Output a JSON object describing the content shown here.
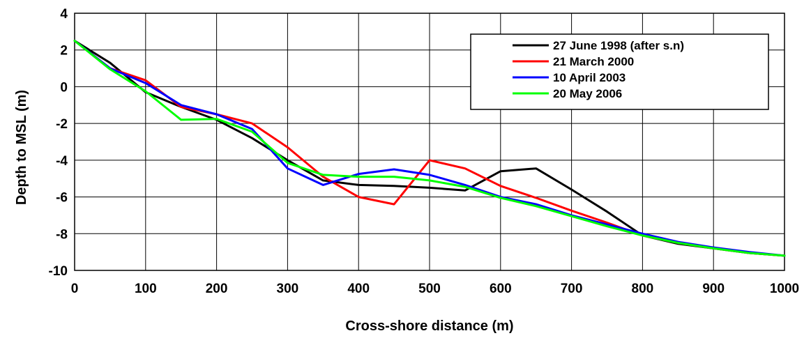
{
  "chart_data": {
    "type": "line",
    "xlabel": "Cross-shore distance (m)",
    "ylabel": "Depth to MSL (m)",
    "xlim": [
      0,
      1000
    ],
    "ylim": [
      -10,
      4
    ],
    "xticks": [
      0,
      100,
      200,
      300,
      400,
      500,
      600,
      700,
      800,
      900,
      1000
    ],
    "yticks": [
      4,
      2,
      0,
      -2,
      -4,
      -6,
      -8,
      -10
    ],
    "grid": true,
    "legend_position": "top-right",
    "series": [
      {
        "name": "27 June 1998 (after s.n)",
        "color": "#000000",
        "x": [
          0,
          50,
          100,
          150,
          200,
          250,
          300,
          350,
          400,
          450,
          500,
          550,
          600,
          650,
          700,
          750,
          800,
          850,
          900,
          950,
          1000
        ],
        "y": [
          2.5,
          1.3,
          -0.3,
          -1.1,
          -1.8,
          -2.8,
          -4.0,
          -5.1,
          -5.35,
          -5.4,
          -5.5,
          -5.65,
          -4.6,
          -4.45,
          -5.6,
          -6.8,
          -8.1,
          -8.55,
          -8.8,
          -9.05,
          -9.2
        ]
      },
      {
        "name": "21 March 2000",
        "color": "#ff0000",
        "x": [
          0,
          50,
          100,
          150,
          200,
          250,
          300,
          350,
          400,
          450,
          500,
          550,
          600,
          650,
          700,
          750,
          800,
          850,
          900,
          950,
          1000
        ],
        "y": [
          2.5,
          1.0,
          0.35,
          -1.1,
          -1.5,
          -2.0,
          -3.3,
          -4.9,
          -6.0,
          -6.4,
          -4.0,
          -4.45,
          -5.4,
          -6.05,
          -6.75,
          -7.4,
          -8.1,
          -8.5,
          -8.8,
          -9.05,
          -9.2
        ]
      },
      {
        "name": "10 April 2003",
        "color": "#0000ff",
        "x": [
          0,
          50,
          100,
          150,
          200,
          250,
          300,
          350,
          400,
          450,
          500,
          550,
          600,
          650,
          700,
          750,
          800,
          850,
          900,
          950,
          1000
        ],
        "y": [
          2.5,
          1.0,
          0.2,
          -1.0,
          -1.5,
          -2.3,
          -4.45,
          -5.35,
          -4.75,
          -4.5,
          -4.8,
          -5.35,
          -6.0,
          -6.4,
          -7.0,
          -7.5,
          -8.0,
          -8.45,
          -8.75,
          -9.0,
          -9.2
        ]
      },
      {
        "name": "20 May 2006",
        "color": "#00ff00",
        "x": [
          0,
          50,
          100,
          150,
          200,
          250,
          300,
          350,
          400,
          450,
          500,
          550,
          600,
          650,
          700,
          750,
          800,
          850,
          900,
          950,
          1000
        ],
        "y": [
          2.5,
          0.95,
          -0.25,
          -1.8,
          -1.75,
          -2.45,
          -4.15,
          -4.8,
          -4.9,
          -4.9,
          -5.1,
          -5.45,
          -6.05,
          -6.5,
          -7.05,
          -7.6,
          -8.1,
          -8.5,
          -8.8,
          -9.05,
          -9.2
        ]
      }
    ]
  }
}
